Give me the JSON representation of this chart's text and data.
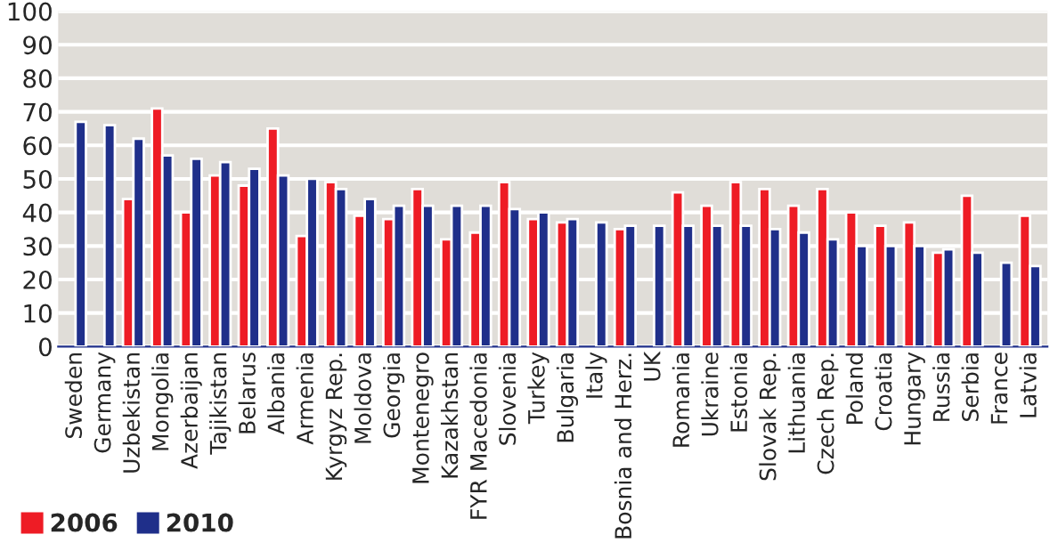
{
  "chart_data": {
    "type": "bar",
    "categories": [
      "Sweden",
      "Germany",
      "Uzbekistan",
      "Mongolia",
      "Azerbaijan",
      "Tajikistan",
      "Belarus",
      "Albania",
      "Armenia",
      "Kyrgyz Rep.",
      "Moldova",
      "Georgia",
      "Montenegro",
      "Kazakhstan",
      "FYR Macedonia",
      "Slovenia",
      "Turkey",
      "Bulgaria",
      "Italy",
      "Bosnia and Herz.",
      "UK",
      "Romania",
      "Ukraine",
      "Estonia",
      "Slovak Rep.",
      "Lithuania",
      "Czech Rep.",
      "Poland",
      "Croatia",
      "Hungary",
      "Russia",
      "Serbia",
      "France",
      "Latvia"
    ],
    "series": [
      {
        "name": "2006",
        "color": "#ee1c25",
        "values": [
          null,
          null,
          44,
          71,
          40,
          51,
          48,
          65,
          33,
          49,
          39,
          38,
          47,
          32,
          34,
          49,
          38,
          37,
          null,
          35,
          null,
          46,
          42,
          49,
          47,
          42,
          47,
          40,
          36,
          37,
          28,
          45,
          null,
          39
        ]
      },
      {
        "name": "2010",
        "color": "#1f2f8a",
        "values": [
          67,
          66,
          62,
          57,
          56,
          55,
          53,
          51,
          50,
          47,
          44,
          42,
          42,
          42,
          42,
          41,
          40,
          38,
          37,
          36,
          36,
          36,
          36,
          36,
          35,
          34,
          32,
          30,
          30,
          30,
          29,
          28,
          25,
          24
        ]
      }
    ],
    "ylim": [
      0,
      100
    ],
    "yticks": [
      0,
      10,
      20,
      30,
      40,
      50,
      60,
      70,
      80,
      90,
      100
    ],
    "grid": "y",
    "legend": "bottom left"
  }
}
